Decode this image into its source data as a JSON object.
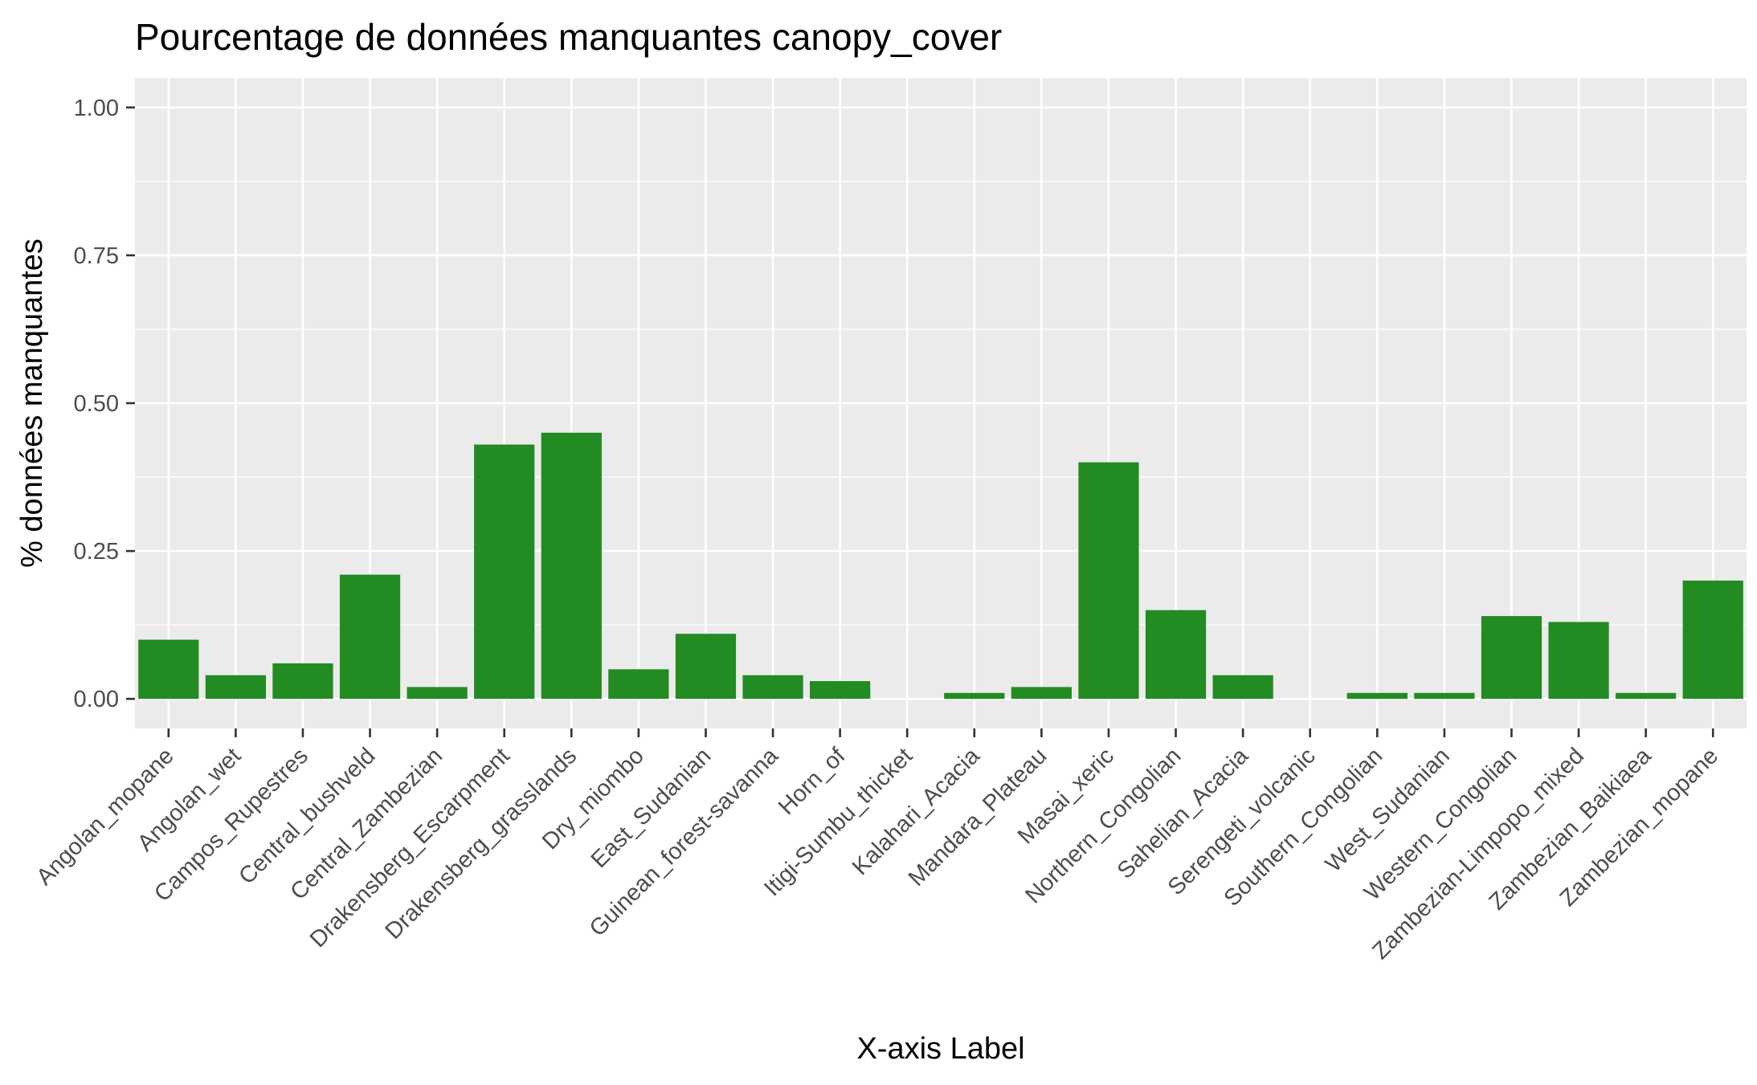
{
  "chart_data": {
    "type": "bar",
    "title": "Pourcentage de données manquantes canopy_cover",
    "xlabel": "X-axis Label",
    "ylabel": "% données manquantes",
    "ylim": [
      -0.05,
      1.05
    ],
    "yticks": [
      0.0,
      0.25,
      0.5,
      0.75,
      1.0
    ],
    "ytick_labels": [
      "0.00",
      "0.25",
      "0.50",
      "0.75",
      "1.00"
    ],
    "grid": true,
    "bar_color": "#228B22",
    "panel_color": "#EBEBEB",
    "grid_color": "#FFFFFF",
    "categories": [
      "Angolan_mopane",
      "Angolan_wet",
      "Campos_Rupestres",
      "Central_bushveld",
      "Central_Zambezian",
      "Drakensberg_Escarpment",
      "Drakensberg_grasslands",
      "Dry_miombo",
      "East_Sudanian",
      "Guinean_forest-savanna",
      "Horn_of",
      "Itigi-Sumbu_thicket",
      "Kalahari_Acacia",
      "Mandara_Plateau",
      "Masai_xeric",
      "Northern_Congolian",
      "Sahelian_Acacia",
      "Serengeti_volcanic",
      "Southern_Congolian",
      "West_Sudanian",
      "Western_Congolian",
      "Zambezian-Limpopo_mixed",
      "Zambezian_Baikiaea",
      "Zambezian_mopane"
    ],
    "values": [
      0.1,
      0.04,
      0.06,
      0.21,
      0.02,
      0.43,
      0.45,
      0.05,
      0.11,
      0.04,
      0.03,
      0.0,
      0.01,
      0.02,
      0.4,
      0.15,
      0.04,
      0.0,
      0.01,
      0.01,
      0.14,
      0.13,
      0.01,
      0.2
    ]
  }
}
